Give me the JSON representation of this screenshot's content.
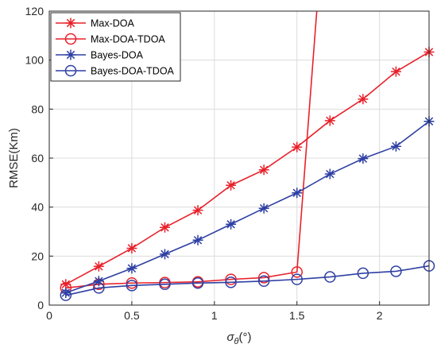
{
  "chart_data": {
    "type": "line",
    "xlabel": "σ_θ(°)",
    "ylabel": "RMSE(Km)",
    "xlim": [
      0,
      2.3
    ],
    "ylim": [
      0,
      120
    ],
    "xticks": [
      0,
      0.5,
      1,
      1.5,
      2
    ],
    "yticks": [
      0,
      20,
      40,
      60,
      80,
      100,
      120
    ],
    "grid": true,
    "legend_position": "top-left",
    "series": [
      {
        "name": "Max-DOA",
        "color": "#e8212a",
        "marker": "asterisk",
        "x": [
          0.1,
          0.3,
          0.5,
          0.7,
          0.9,
          1.1,
          1.3,
          1.5,
          1.7,
          1.9,
          2.1,
          2.3
        ],
        "y": [
          8.5,
          15.8,
          23.2,
          31.7,
          38.7,
          48.9,
          55.2,
          64.5,
          75.3,
          84.1,
          95.3,
          103.3
        ]
      },
      {
        "name": "Max-DOA-TDOA",
        "color": "#e8212a",
        "marker": "circle",
        "x": [
          0.1,
          0.3,
          0.5,
          0.7,
          0.9,
          1.1,
          1.3,
          1.5,
          1.62
        ],
        "y": [
          7.0,
          8.5,
          9.0,
          9.2,
          9.5,
          10.5,
          11.2,
          13.5,
          120
        ],
        "marked_points": 8
      },
      {
        "name": "Bayes-DOA",
        "color": "#2e3fa3",
        "marker": "asterisk",
        "x": [
          0.1,
          0.3,
          0.5,
          0.7,
          0.9,
          1.1,
          1.3,
          1.5,
          1.7,
          1.9,
          2.1,
          2.3
        ],
        "y": [
          5.0,
          9.8,
          15.0,
          20.8,
          26.5,
          33.0,
          39.5,
          45.8,
          53.5,
          59.8,
          64.8,
          75.0
        ]
      },
      {
        "name": "Bayes-DOA-TDOA",
        "color": "#2e3fa3",
        "marker": "circle",
        "x": [
          0.1,
          0.3,
          0.5,
          0.7,
          0.9,
          1.1,
          1.3,
          1.5,
          1.7,
          1.9,
          2.1,
          2.3
        ],
        "y": [
          4.0,
          7.0,
          8.0,
          8.5,
          9.0,
          9.3,
          9.8,
          10.5,
          11.5,
          13.0,
          13.8,
          16.0
        ]
      }
    ]
  }
}
